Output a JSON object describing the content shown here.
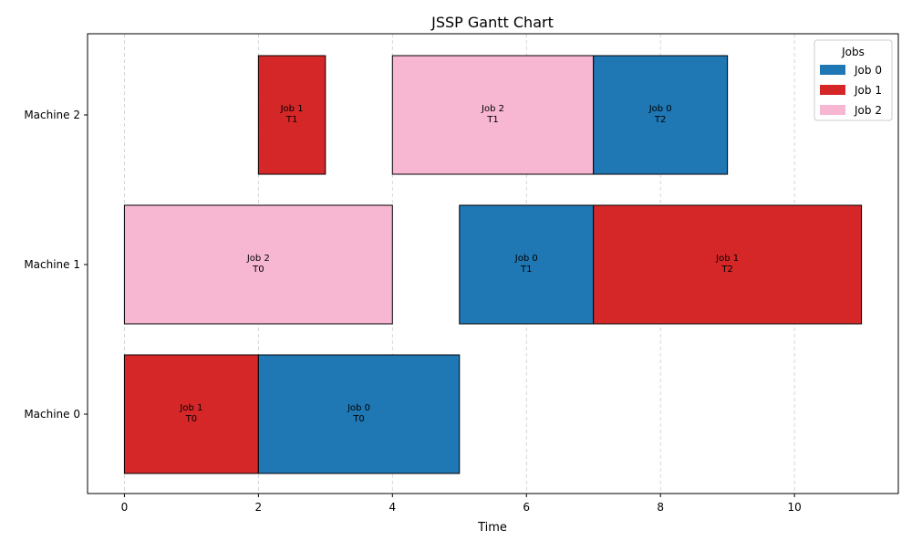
{
  "chart_data": {
    "type": "gantt",
    "title": "JSSP Gantt Chart",
    "xlabel": "Time",
    "ylabel": "",
    "xlim": [
      -0.55,
      11.55
    ],
    "x_ticks": [
      0,
      2,
      4,
      6,
      8,
      10
    ],
    "grid": "vertical dashed",
    "machines": [
      "Machine 0",
      "Machine 1",
      "Machine 2"
    ],
    "legend": {
      "title": "Jobs",
      "position": "top-right",
      "entries": [
        {
          "label": "Job 0",
          "color": "#1f77b4"
        },
        {
          "label": "Job 1",
          "color": "#d62728"
        },
        {
          "label": "Job 2",
          "color": "#f7b6d2"
        }
      ]
    },
    "tasks": [
      {
        "machine": 0,
        "job": 1,
        "label_job": "Job 1",
        "label_task": "T0",
        "start": 0,
        "end": 2
      },
      {
        "machine": 0,
        "job": 0,
        "label_job": "Job 0",
        "label_task": "T0",
        "start": 2,
        "end": 5
      },
      {
        "machine": 1,
        "job": 2,
        "label_job": "Job 2",
        "label_task": "T0",
        "start": 0,
        "end": 4
      },
      {
        "machine": 1,
        "job": 0,
        "label_job": "Job 0",
        "label_task": "T1",
        "start": 5,
        "end": 7
      },
      {
        "machine": 1,
        "job": 1,
        "label_job": "Job 1",
        "label_task": "T2",
        "start": 7,
        "end": 11
      },
      {
        "machine": 2,
        "job": 1,
        "label_job": "Job 1",
        "label_task": "T1",
        "start": 2,
        "end": 3
      },
      {
        "machine": 2,
        "job": 2,
        "label_job": "Job 2",
        "label_task": "T1",
        "start": 4,
        "end": 7
      },
      {
        "machine": 2,
        "job": 0,
        "label_job": "Job 0",
        "label_task": "T2",
        "start": 7,
        "end": 9
      }
    ]
  }
}
